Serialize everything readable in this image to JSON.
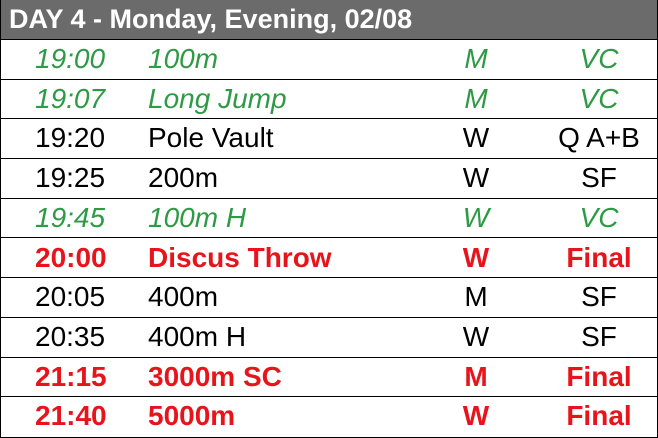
{
  "header": {
    "title": "DAY 4 - Monday, Evening, 02/08"
  },
  "table": {
    "rows": [
      {
        "time": "19:00",
        "event": "100m",
        "gender": "M",
        "round": "VC",
        "color": "#2e9a45",
        "bold": false,
        "italic": true
      },
      {
        "time": "19:07",
        "event": "Long Jump",
        "gender": "M",
        "round": "VC",
        "color": "#2e9a45",
        "bold": false,
        "italic": true
      },
      {
        "time": "19:20",
        "event": "Pole Vault",
        "gender": "W",
        "round": "Q A+B",
        "color": "#000000",
        "bold": false,
        "italic": false
      },
      {
        "time": "19:25",
        "event": "200m",
        "gender": "W",
        "round": "SF",
        "color": "#000000",
        "bold": false,
        "italic": false
      },
      {
        "time": "19:45",
        "event": "100m H",
        "gender": "W",
        "round": "VC",
        "color": "#2e9a45",
        "bold": false,
        "italic": true
      },
      {
        "time": "20:00",
        "event": "Discus Throw",
        "gender": "W",
        "round": "Final",
        "color": "#e8141c",
        "bold": true,
        "italic": false
      },
      {
        "time": "20:05",
        "event": "400m",
        "gender": "M",
        "round": "SF",
        "color": "#000000",
        "bold": false,
        "italic": false
      },
      {
        "time": "20:35",
        "event": "400m H",
        "gender": "W",
        "round": "SF",
        "color": "#000000",
        "bold": false,
        "italic": false
      },
      {
        "time": "21:15",
        "event": "3000m SC",
        "gender": "M",
        "round": "Final",
        "color": "#e8141c",
        "bold": true,
        "italic": false
      },
      {
        "time": "21:40",
        "event": "5000m",
        "gender": "W",
        "round": "Final",
        "color": "#e8141c",
        "bold": true,
        "italic": false
      }
    ]
  }
}
